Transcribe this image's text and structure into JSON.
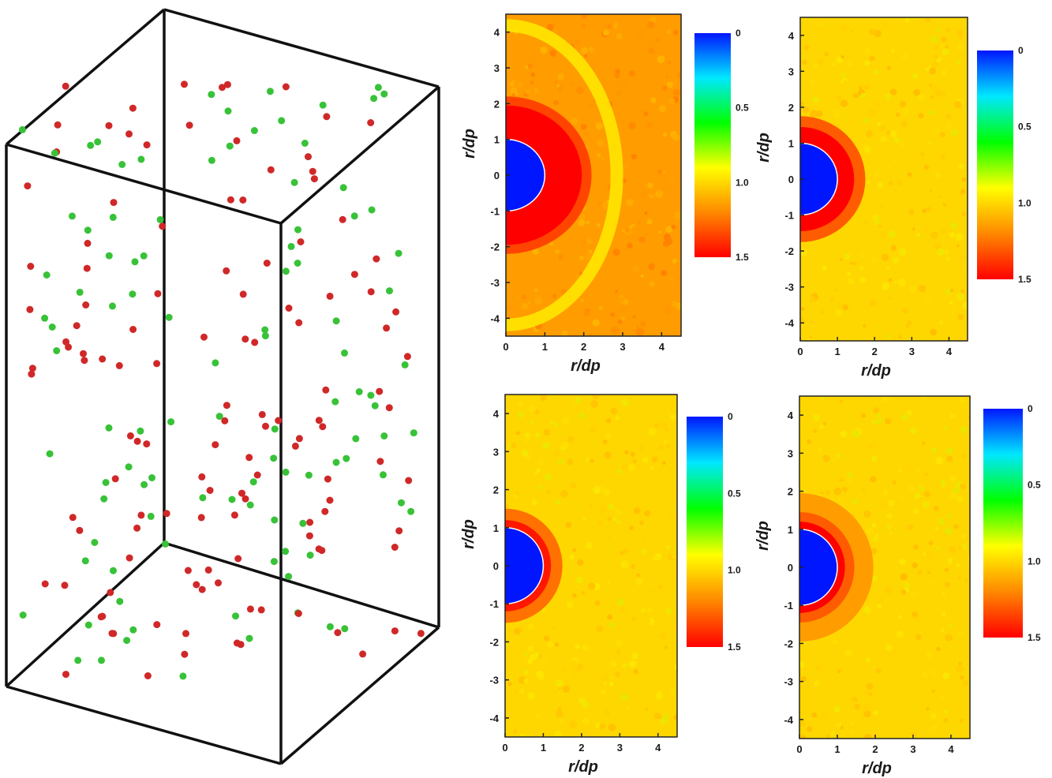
{
  "colors": {
    "red_particle": "#d02828",
    "green_particle": "#38c238",
    "box_edge": "#111111",
    "colormap": [
      "#0016ff",
      "#00e8ff",
      "#00ff00",
      "#ffff00",
      "#ff8800",
      "#ff0000"
    ]
  },
  "particles_3d": {
    "description_colors": [
      "red",
      "green"
    ]
  },
  "chart_data": [
    {
      "type": "heatmap",
      "panel": "top-left",
      "xlabel": "r/dp",
      "ylabel": "r/dp",
      "xlim": [
        0,
        4.5
      ],
      "ylim": [
        -4.5,
        4.5
      ],
      "xticks": [
        "0",
        "1",
        "2",
        "3",
        "4"
      ],
      "yticks": [
        "-4",
        "-3",
        "-2",
        "-1",
        "0",
        "1",
        "2",
        "3",
        "4"
      ],
      "colorbar": {
        "ticks": [
          "0",
          "0.5",
          "1.0",
          "1.5"
        ],
        "range": [
          0,
          1.5
        ],
        "reversed": true
      },
      "background_value": 1.15,
      "core_radius": 1.0,
      "shells": [
        {
          "radius": 1.95,
          "value": 1.5
        },
        {
          "radius": 2.2,
          "value": 1.35
        }
      ],
      "ring": {
        "radius": 2.7,
        "value": 0.95
      }
    },
    {
      "type": "heatmap",
      "panel": "top-right",
      "xlabel": "r/dp",
      "ylabel": "r/dp",
      "xlim": [
        0,
        4.5
      ],
      "ylim": [
        -4.5,
        4.5
      ],
      "xticks": [
        "0",
        "1",
        "2",
        "3",
        "4"
      ],
      "yticks": [
        "-4",
        "-3",
        "-2",
        "-1",
        "0",
        "1",
        "2",
        "3",
        "4"
      ],
      "colorbar": {
        "ticks": [
          "0",
          "0.5",
          "1.0",
          "1.5"
        ],
        "range": [
          0,
          1.5
        ],
        "reversed": true
      },
      "background_value": 1.0,
      "core_radius": 1.0,
      "shells": [
        {
          "radius": 1.45,
          "value": 1.5
        },
        {
          "radius": 1.75,
          "value": 1.3
        }
      ]
    },
    {
      "type": "heatmap",
      "panel": "bottom-left",
      "xlabel": "r/dp",
      "ylabel": "r/dp",
      "xlim": [
        0,
        4.5
      ],
      "ylim": [
        -4.5,
        4.5
      ],
      "xticks": [
        "0",
        "1",
        "2",
        "3",
        "4"
      ],
      "yticks": [
        "-4",
        "-3",
        "-2",
        "-1",
        "0",
        "1",
        "2",
        "3",
        "4"
      ],
      "colorbar": {
        "ticks": [
          "0",
          "0.5",
          "1.0",
          "1.5"
        ],
        "range": [
          0,
          1.5
        ],
        "reversed": true
      },
      "background_value": 1.0,
      "core_radius": 1.0,
      "shells": [
        {
          "radius": 1.2,
          "value": 1.45
        },
        {
          "radius": 1.5,
          "value": 1.25
        }
      ]
    },
    {
      "type": "heatmap",
      "panel": "bottom-right",
      "xlabel": "r/dp",
      "ylabel": "r/dp",
      "xlim": [
        0,
        4.5
      ],
      "ylim": [
        -4.5,
        4.5
      ],
      "xticks": [
        "0",
        "1",
        "2",
        "3",
        "4"
      ],
      "yticks": [
        "-4",
        "-3",
        "-2",
        "-1",
        "0",
        "1",
        "2",
        "3",
        "4"
      ],
      "colorbar": {
        "ticks": [
          "0",
          "0.5",
          "1.0",
          "1.5"
        ],
        "range": [
          0,
          1.5
        ],
        "reversed": true
      },
      "background_value": 1.0,
      "core_radius": 1.0,
      "shells": [
        {
          "radius": 1.2,
          "value": 1.5
        },
        {
          "radius": 1.45,
          "value": 1.3
        },
        {
          "radius": 1.95,
          "value": 1.15
        }
      ]
    }
  ]
}
